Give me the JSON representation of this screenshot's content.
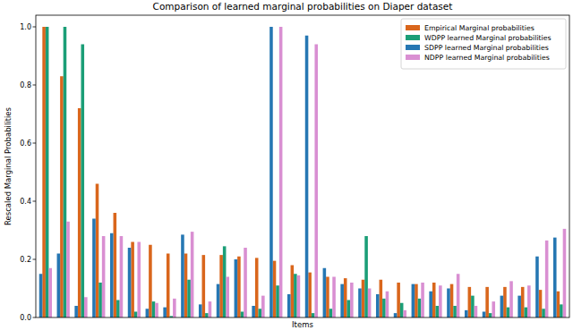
{
  "chart_data": {
    "type": "bar",
    "title": "Comparison of learned marginal probabilities on Diaper dataset",
    "x_label": "Items",
    "y_label": "Rescaled Marginal Probabilities",
    "categories": [
      null,
      null,
      null,
      null,
      null,
      null,
      null,
      null,
      null,
      null,
      null,
      null,
      null,
      null,
      null,
      null,
      null,
      null,
      null,
      null,
      null,
      null,
      null,
      null,
      null,
      null,
      null,
      null,
      null,
      null
    ],
    "series": [
      {
        "name": "Empirical Marginal probabilities",
        "color": "#d9661c",
        "values": [
          1.0,
          0.83,
          0.72,
          0.46,
          0.36,
          0.26,
          0.25,
          0.22,
          0.22,
          0.215,
          0.215,
          0.21,
          0.205,
          0.195,
          0.18,
          0.155,
          0.14,
          0.135,
          0.13,
          0.13,
          0.12,
          0.115,
          0.12,
          0.115,
          0.105,
          0.105,
          0.105,
          0.105,
          0.095,
          0.09
        ]
      },
      {
        "name": "WDPP learned Marginal probabilities",
        "color": "#1b9e77",
        "values": [
          1.0,
          1.0,
          0.94,
          0.12,
          0.06,
          0.02,
          0.055,
          0.005,
          0.13,
          0.015,
          0.245,
          0.02,
          0.03,
          0.11,
          0.15,
          0.015,
          0.03,
          0.06,
          0.28,
          0.065,
          0.05,
          0.065,
          0.04,
          0.04,
          0.075,
          0.015,
          0.035,
          0.035,
          0.03,
          0.045
        ]
      },
      {
        "name": "SDPP learned Marginal probabilities",
        "color": "#2677b3",
        "values": [
          0.15,
          0.22,
          0.04,
          0.34,
          0.29,
          0.24,
          0.03,
          0.035,
          0.285,
          0.045,
          0.115,
          0.2,
          0.04,
          1.0,
          0.08,
          0.97,
          0.17,
          0.115,
          0.1,
          0.08,
          0.015,
          0.115,
          0.09,
          0.1,
          0.025,
          0.02,
          0.075,
          0.075,
          0.21,
          0.275
        ]
      },
      {
        "name": "NDPP learned Marginal probabilities",
        "color": "#d98fd2",
        "values": [
          0.17,
          0.33,
          0.07,
          0.28,
          0.28,
          0.26,
          0.05,
          0.065,
          0.295,
          0.055,
          0.14,
          0.24,
          0.075,
          1.0,
          0.145,
          0.94,
          0.14,
          0.12,
          0.1,
          0.09,
          0.025,
          0.12,
          0.11,
          0.15,
          0.04,
          0.055,
          0.125,
          0.11,
          0.265,
          0.305
        ]
      }
    ],
    "ylim": [
      0,
      1.04
    ],
    "yticks": [
      {
        "value": 0,
        "label": "0.0"
      },
      {
        "value": 0.2,
        "label": "0.2"
      },
      {
        "value": 0.4,
        "label": "0.4"
      },
      {
        "value": 0.6,
        "label": "0.6"
      },
      {
        "value": 0.8,
        "label": "0.8"
      },
      {
        "value": 1.0,
        "label": "1.0"
      }
    ],
    "grid": false,
    "legend": "upper right",
    "tick_labels": "y"
  }
}
